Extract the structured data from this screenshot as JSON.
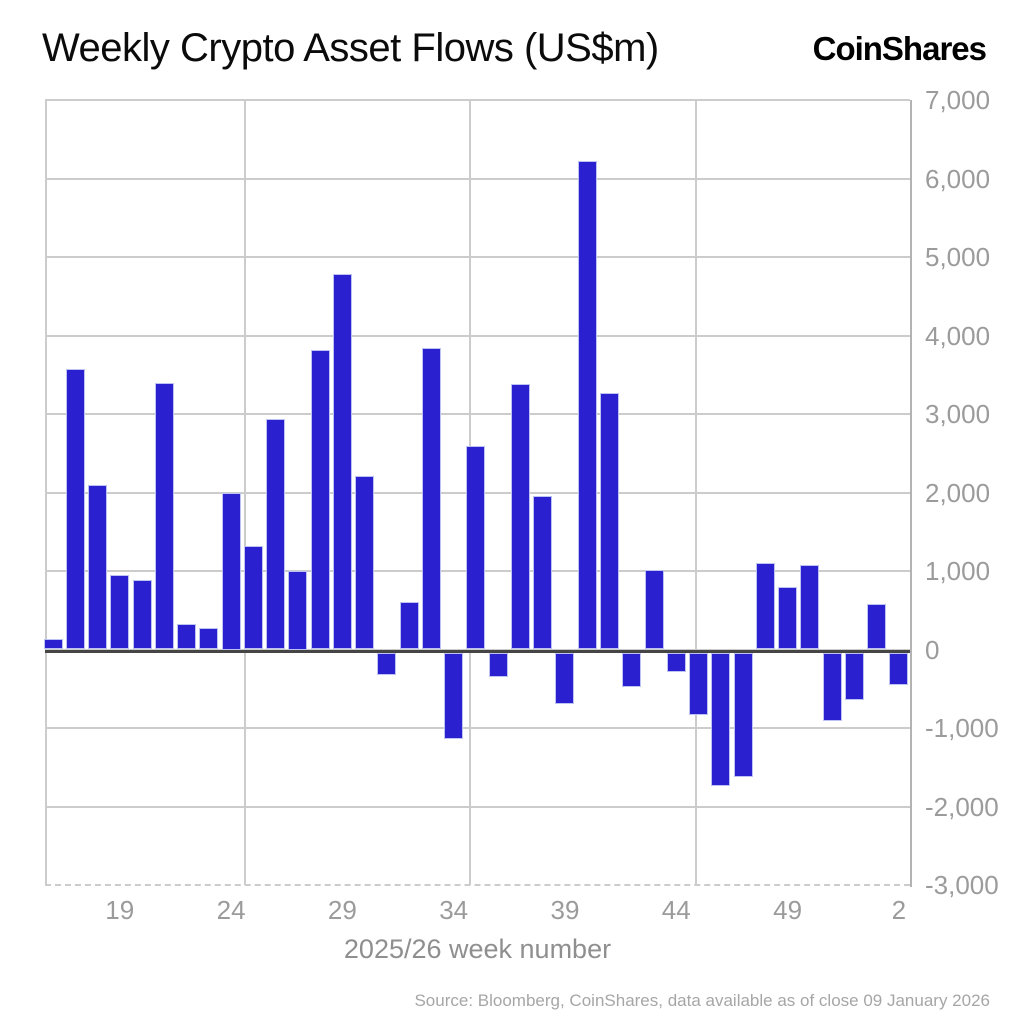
{
  "header": {
    "title": "Weekly Crypto Asset Flows (US$m)",
    "logo": "CoinShares"
  },
  "chart_data": {
    "type": "bar",
    "title": "Weekly Crypto Asset Flows (US$m)",
    "xlabel": "2025/26 week number",
    "ylabel": "",
    "ylim": [
      -3000,
      7000
    ],
    "ytick_interval": 1000,
    "ytick_labels": [
      "7,000",
      "6,000",
      "5,000",
      "4,000",
      "3,000",
      "2,000",
      "1,000",
      "0",
      "-1,000",
      "-2,000",
      "-3,000"
    ],
    "xtick_weeks": [
      19,
      24,
      29,
      34,
      39,
      44,
      49,
      2
    ],
    "grid": true,
    "legend": false,
    "bar_color": "#2b20cf",
    "x": [
      16,
      17,
      18,
      19,
      20,
      21,
      22,
      23,
      24,
      25,
      26,
      27,
      28,
      29,
      30,
      31,
      32,
      33,
      34,
      35,
      36,
      37,
      38,
      39,
      40,
      41,
      42,
      43,
      44,
      45,
      46,
      47,
      48,
      49,
      50,
      51,
      52,
      1,
      2
    ],
    "values": [
      130,
      3570,
      2100,
      950,
      880,
      3400,
      330,
      280,
      2000,
      1320,
      2930,
      1000,
      3820,
      4780,
      2210,
      -320,
      600,
      3840,
      -1140,
      2590,
      -350,
      3380,
      1950,
      -700,
      6220,
      3270,
      -480,
      1010,
      -290,
      -830,
      -1740,
      -1630,
      1100,
      800,
      1080,
      -910,
      -640,
      580,
      -450
    ]
  },
  "footer": {
    "source": "Source: Bloomberg, CoinShares, data available as of close 09 January 2026"
  }
}
